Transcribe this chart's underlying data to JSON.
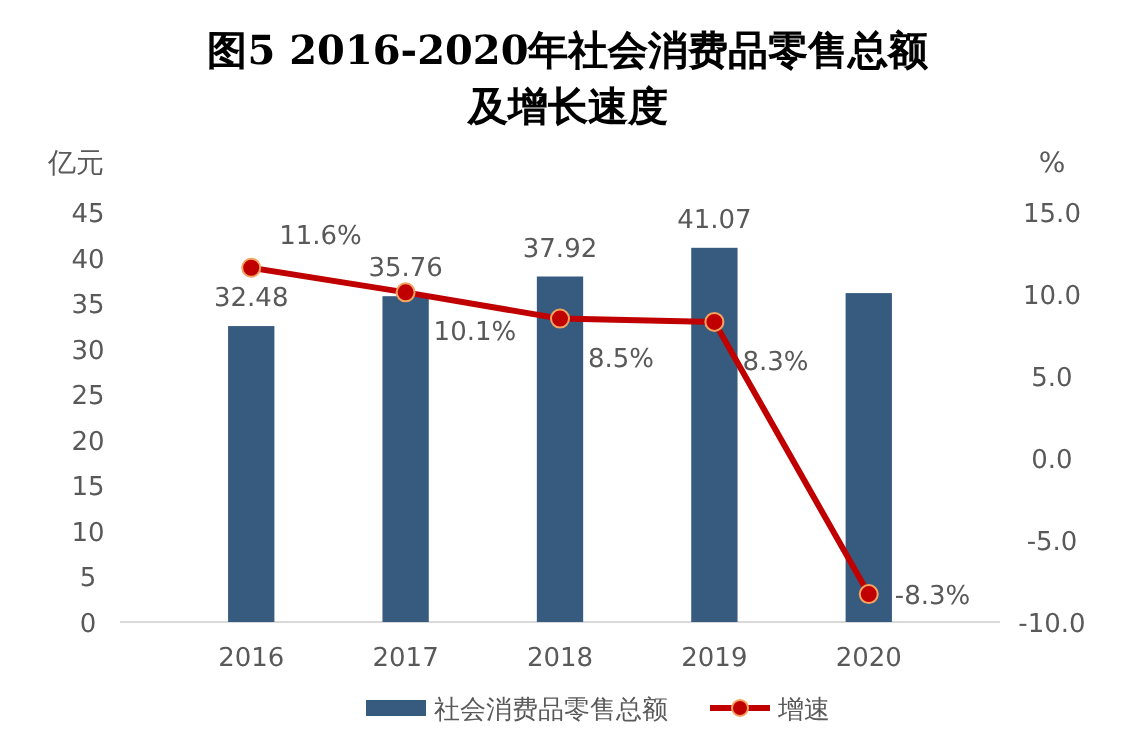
{
  "chart_data": {
    "type": "bar",
    "title": "图5 2016-2020年社会消费品零售总额及增长速度",
    "ylabel": "亿元",
    "y2label": "%",
    "categories": [
      "2016",
      "2017",
      "2018",
      "2019",
      "2020"
    ],
    "series": [
      {
        "name": "社会消费品零售总额",
        "color": "#375a7f",
        "values": [
          32.48,
          35.76,
          37.92,
          41.07,
          36.1
        ],
        "value_labels": [
          "32.48",
          "35.76",
          "37.92",
          "41.07",
          null
        ]
      },
      {
        "name": "增速",
        "type": "line",
        "axis": "y2",
        "color": "#c00000",
        "marker": "circle",
        "values": [
          11.6,
          10.1,
          8.5,
          8.3,
          -8.3
        ],
        "value_labels": [
          "11.6%",
          "10.1%",
          "8.5%",
          "8.3%",
          "-8.3%"
        ]
      }
    ],
    "ylim": [
      0,
      45
    ],
    "yticks": [
      0,
      5,
      10,
      15,
      20,
      25,
      30,
      35,
      40,
      45
    ],
    "y2lim": [
      -10,
      15
    ],
    "y2ticks": [
      {
        "value": -10,
        "label": "-10.0"
      },
      {
        "value": -5,
        "label": "-5.0"
      },
      {
        "value": 0,
        "label": "0.0"
      },
      {
        "value": 5,
        "label": "5.0"
      },
      {
        "value": 10,
        "label": "10.0"
      },
      {
        "value": 15,
        "label": "15.0"
      }
    ],
    "grid": false,
    "legend": "bottom"
  }
}
